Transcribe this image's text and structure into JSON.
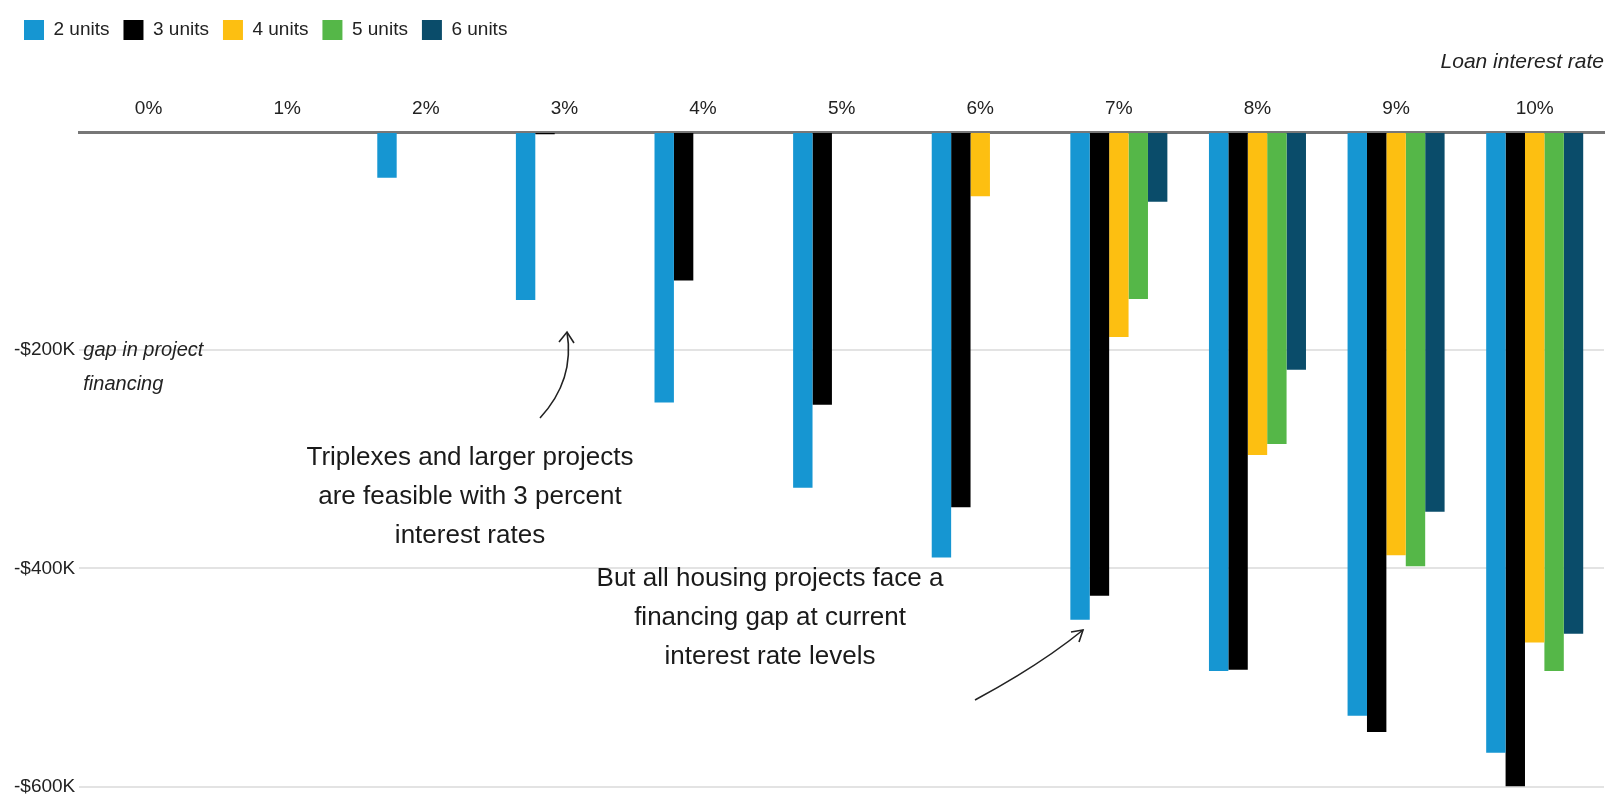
{
  "chart_data": {
    "type": "bar",
    "xlabel": "Loan interest rate",
    "ylabel": "gap in project financing",
    "categories": [
      "0%",
      "1%",
      "2%",
      "3%",
      "4%",
      "5%",
      "6%",
      "7%",
      "8%",
      "9%",
      "10%"
    ],
    "series": [
      {
        "name": "2 units",
        "color": "#1696d2",
        "values": [
          null,
          null,
          -42,
          -154,
          -248,
          -326,
          -390,
          -447,
          -494,
          -535,
          -569
        ]
      },
      {
        "name": "3 units",
        "color": "#000000",
        "values": [
          null,
          null,
          null,
          -2,
          -136,
          -250,
          -344,
          -425,
          -493,
          -550,
          -600
        ]
      },
      {
        "name": "4 units",
        "color": "#fdbf11",
        "values": [
          null,
          null,
          null,
          null,
          null,
          null,
          -59,
          -188,
          -296,
          -388,
          -468
        ]
      },
      {
        "name": "5 units",
        "color": "#55b748",
        "values": [
          null,
          null,
          null,
          null,
          null,
          null,
          null,
          -153,
          -286,
          -398,
          -494
        ]
      },
      {
        "name": "6 units",
        "color": "#0a4c6a",
        "values": [
          null,
          null,
          null,
          null,
          null,
          null,
          null,
          -64,
          -218,
          -348,
          -460
        ]
      }
    ],
    "ylim": [
      -600,
      0
    ],
    "yticks": [
      {
        "value": -600,
        "label": "-$600K"
      },
      {
        "value": -400,
        "label": "-$400K"
      },
      {
        "value": -200,
        "label": "-$200K"
      },
      {
        "value": 0,
        "label": null
      }
    ],
    "grid": "y",
    "legend": "top left",
    "annotations": [
      "Triplexes and larger projects are feasible with 3 percent interest rates",
      "But all housing projects face a financing gap at current interest rate levels"
    ]
  }
}
